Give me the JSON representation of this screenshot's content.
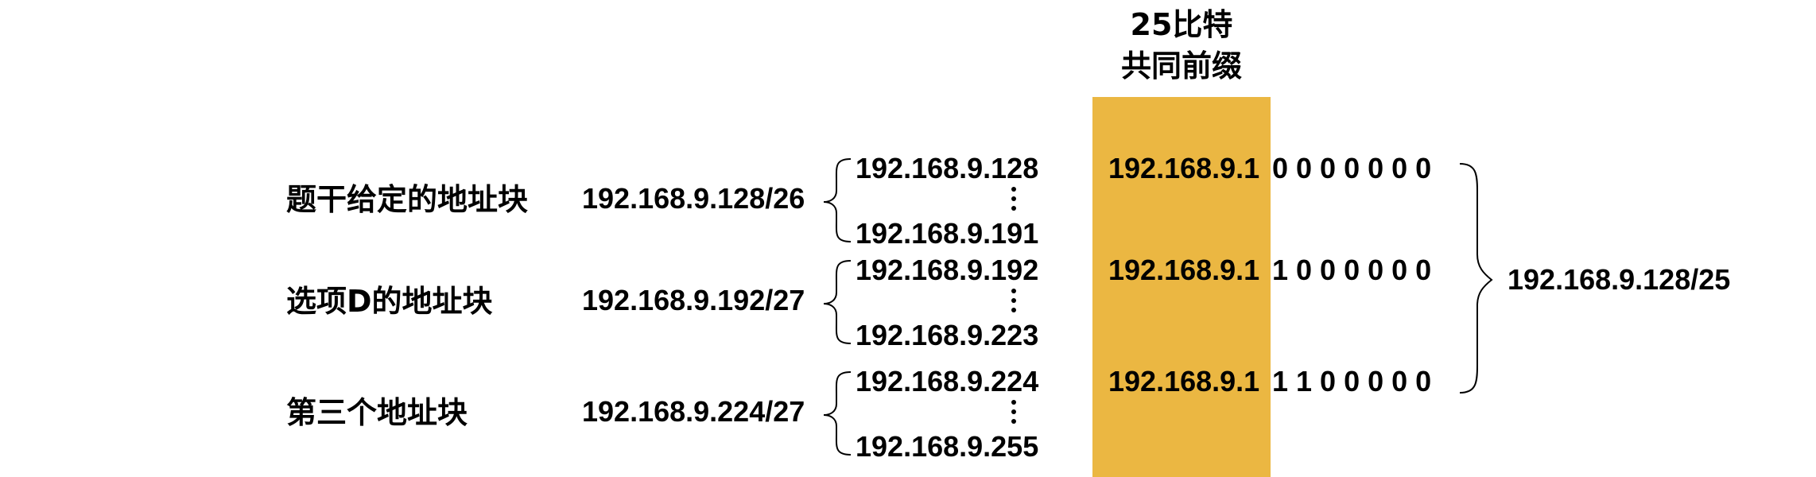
{
  "header": {
    "line1": "25比特",
    "line2": "共同前缀"
  },
  "rows": [
    {
      "label": "题干给定的地址块",
      "cidr": "192.168.9.128/26",
      "first": "192.168.9.128",
      "last": "192.168.9.191",
      "prefix": "192.168.9.1",
      "bits": "0 0 0 0 0 0 0"
    },
    {
      "label": "选项D的地址块",
      "cidr": "192.168.9.192/27",
      "first": "192.168.9.192",
      "last": "192.168.9.223",
      "prefix": "192.168.9.1",
      "bits": "1 0 0 0 0 0 0"
    },
    {
      "label": "第三个地址块",
      "cidr": "192.168.9.224/27",
      "first": "192.168.9.224",
      "last": "192.168.9.255",
      "prefix": "192.168.9.1",
      "bits": "1 1 0 0 0 0 0"
    }
  ],
  "result": "192.168.9.128/25",
  "colors": {
    "prefix_highlight": "#ebb742"
  }
}
